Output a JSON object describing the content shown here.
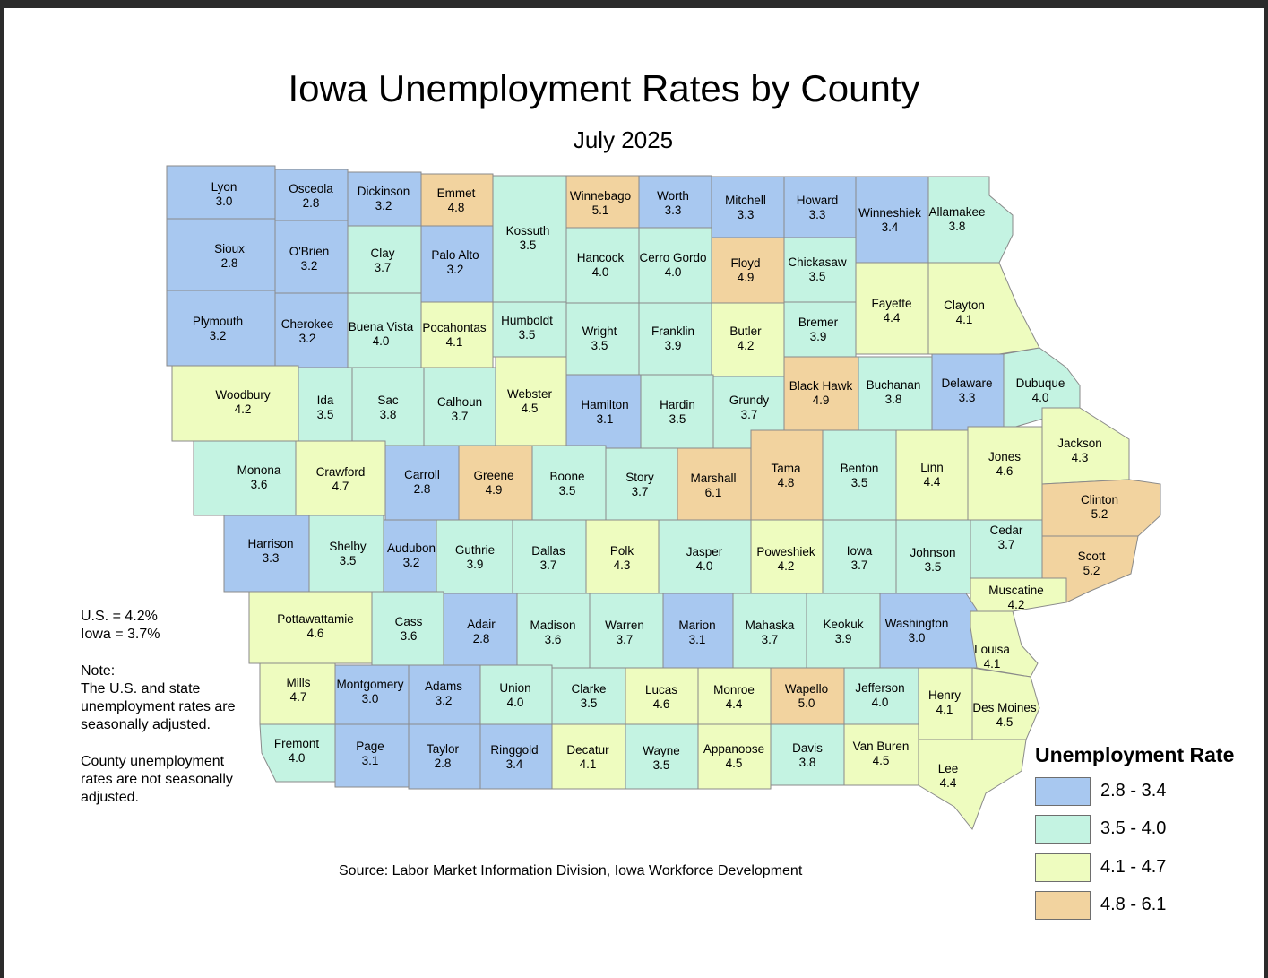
{
  "title": "Iowa Unemployment Rates by County",
  "subtitle": "July 2025",
  "notes": {
    "us": "U.S. = 4.2%",
    "iowa": "Iowa = 3.7%",
    "note_head": "Note:",
    "note_line1": "The U.S. and state",
    "note_line2": "unemployment rates are",
    "note_line3": "seasonally adjusted.",
    "county_line1": "County unemployment",
    "county_line2": "rates are not seasonally",
    "county_line3": "adjusted."
  },
  "source": "Source: Labor Market Information Division, Iowa Workforce Development",
  "legend": {
    "title": "Unemployment Rate",
    "items": [
      {
        "label": "2.8 - 3.4",
        "color": "#a8c8f0"
      },
      {
        "label": "3.5 - 4.0",
        "color": "#c4f3e2"
      },
      {
        "label": "4.1 - 4.7",
        "color": "#eefcbf"
      },
      {
        "label": "4.8 - 6.1",
        "color": "#f2d39f"
      }
    ]
  },
  "counties": [
    {
      "name": "Lyon",
      "rate": "3.0"
    },
    {
      "name": "Osceola",
      "rate": "2.8"
    },
    {
      "name": "Dickinson",
      "rate": "3.2"
    },
    {
      "name": "Emmet",
      "rate": "4.8"
    },
    {
      "name": "Kossuth",
      "rate": "3.5"
    },
    {
      "name": "Winnebago",
      "rate": "5.1"
    },
    {
      "name": "Worth",
      "rate": "3.3"
    },
    {
      "name": "Mitchell",
      "rate": "3.3"
    },
    {
      "name": "Howard",
      "rate": "3.3"
    },
    {
      "name": "Winneshiek",
      "rate": "3.4"
    },
    {
      "name": "Allamakee",
      "rate": "3.8"
    },
    {
      "name": "Sioux",
      "rate": "2.8"
    },
    {
      "name": "O'Brien",
      "rate": "3.2"
    },
    {
      "name": "Clay",
      "rate": "3.7"
    },
    {
      "name": "Palo Alto",
      "rate": "3.2"
    },
    {
      "name": "Hancock",
      "rate": "4.0"
    },
    {
      "name": "Cerro Gordo",
      "rate": "4.0"
    },
    {
      "name": "Floyd",
      "rate": "4.9"
    },
    {
      "name": "Chickasaw",
      "rate": "3.5"
    },
    {
      "name": "Fayette",
      "rate": "4.4"
    },
    {
      "name": "Clayton",
      "rate": "4.1"
    },
    {
      "name": "Plymouth",
      "rate": "3.2"
    },
    {
      "name": "Cherokee",
      "rate": "3.2"
    },
    {
      "name": "Buena Vista",
      "rate": "4.0"
    },
    {
      "name": "Pocahontas",
      "rate": "4.1"
    },
    {
      "name": "Humboldt",
      "rate": "3.5"
    },
    {
      "name": "Wright",
      "rate": "3.5"
    },
    {
      "name": "Franklin",
      "rate": "3.9"
    },
    {
      "name": "Butler",
      "rate": "4.2"
    },
    {
      "name": "Bremer",
      "rate": "3.9"
    },
    {
      "name": "Black Hawk",
      "rate": "4.9"
    },
    {
      "name": "Buchanan",
      "rate": "3.8"
    },
    {
      "name": "Delaware",
      "rate": "3.3"
    },
    {
      "name": "Dubuque",
      "rate": "4.0"
    },
    {
      "name": "Woodbury",
      "rate": "4.2"
    },
    {
      "name": "Ida",
      "rate": "3.5"
    },
    {
      "name": "Sac",
      "rate": "3.8"
    },
    {
      "name": "Calhoun",
      "rate": "3.7"
    },
    {
      "name": "Webster",
      "rate": "4.5"
    },
    {
      "name": "Hamilton",
      "rate": "3.1"
    },
    {
      "name": "Hardin",
      "rate": "3.5"
    },
    {
      "name": "Grundy",
      "rate": "3.7"
    },
    {
      "name": "Monona",
      "rate": "3.6"
    },
    {
      "name": "Crawford",
      "rate": "4.7"
    },
    {
      "name": "Carroll",
      "rate": "2.8"
    },
    {
      "name": "Greene",
      "rate": "4.9"
    },
    {
      "name": "Boone",
      "rate": "3.5"
    },
    {
      "name": "Story",
      "rate": "3.7"
    },
    {
      "name": "Marshall",
      "rate": "6.1"
    },
    {
      "name": "Tama",
      "rate": "4.8"
    },
    {
      "name": "Benton",
      "rate": "3.5"
    },
    {
      "name": "Linn",
      "rate": "4.4"
    },
    {
      "name": "Jones",
      "rate": "4.6"
    },
    {
      "name": "Jackson",
      "rate": "4.3"
    },
    {
      "name": "Clinton",
      "rate": "5.2"
    },
    {
      "name": "Harrison",
      "rate": "3.3"
    },
    {
      "name": "Shelby",
      "rate": "3.5"
    },
    {
      "name": "Audubon",
      "rate": "3.2"
    },
    {
      "name": "Guthrie",
      "rate": "3.9"
    },
    {
      "name": "Dallas",
      "rate": "3.7"
    },
    {
      "name": "Polk",
      "rate": "4.3"
    },
    {
      "name": "Jasper",
      "rate": "4.0"
    },
    {
      "name": "Poweshiek",
      "rate": "4.2"
    },
    {
      "name": "Iowa",
      "rate": "3.7"
    },
    {
      "name": "Johnson",
      "rate": "3.5"
    },
    {
      "name": "Cedar",
      "rate": "3.7"
    },
    {
      "name": "Scott",
      "rate": "5.2"
    },
    {
      "name": "Muscatine",
      "rate": "4.2"
    },
    {
      "name": "Pottawattamie",
      "rate": "4.6"
    },
    {
      "name": "Cass",
      "rate": "3.6"
    },
    {
      "name": "Adair",
      "rate": "2.8"
    },
    {
      "name": "Madison",
      "rate": "3.6"
    },
    {
      "name": "Warren",
      "rate": "3.7"
    },
    {
      "name": "Marion",
      "rate": "3.1"
    },
    {
      "name": "Mahaska",
      "rate": "3.7"
    },
    {
      "name": "Keokuk",
      "rate": "3.9"
    },
    {
      "name": "Washington",
      "rate": "3.0"
    },
    {
      "name": "Louisa",
      "rate": "4.1"
    },
    {
      "name": "Mills",
      "rate": "4.7"
    },
    {
      "name": "Montgomery",
      "rate": "3.0"
    },
    {
      "name": "Adams",
      "rate": "3.2"
    },
    {
      "name": "Union",
      "rate": "4.0"
    },
    {
      "name": "Clarke",
      "rate": "3.5"
    },
    {
      "name": "Lucas",
      "rate": "4.6"
    },
    {
      "name": "Monroe",
      "rate": "4.4"
    },
    {
      "name": "Wapello",
      "rate": "5.0"
    },
    {
      "name": "Jefferson",
      "rate": "4.0"
    },
    {
      "name": "Henry",
      "rate": "4.1"
    },
    {
      "name": "Des Moines",
      "rate": "4.5"
    },
    {
      "name": "Fremont",
      "rate": "4.0"
    },
    {
      "name": "Page",
      "rate": "3.1"
    },
    {
      "name": "Taylor",
      "rate": "2.8"
    },
    {
      "name": "Ringgold",
      "rate": "3.4"
    },
    {
      "name": "Decatur",
      "rate": "4.1"
    },
    {
      "name": "Wayne",
      "rate": "3.5"
    },
    {
      "name": "Appanoose",
      "rate": "4.5"
    },
    {
      "name": "Davis",
      "rate": "3.8"
    },
    {
      "name": "Van Buren",
      "rate": "4.5"
    },
    {
      "name": "Lee",
      "rate": "4.4"
    }
  ]
}
